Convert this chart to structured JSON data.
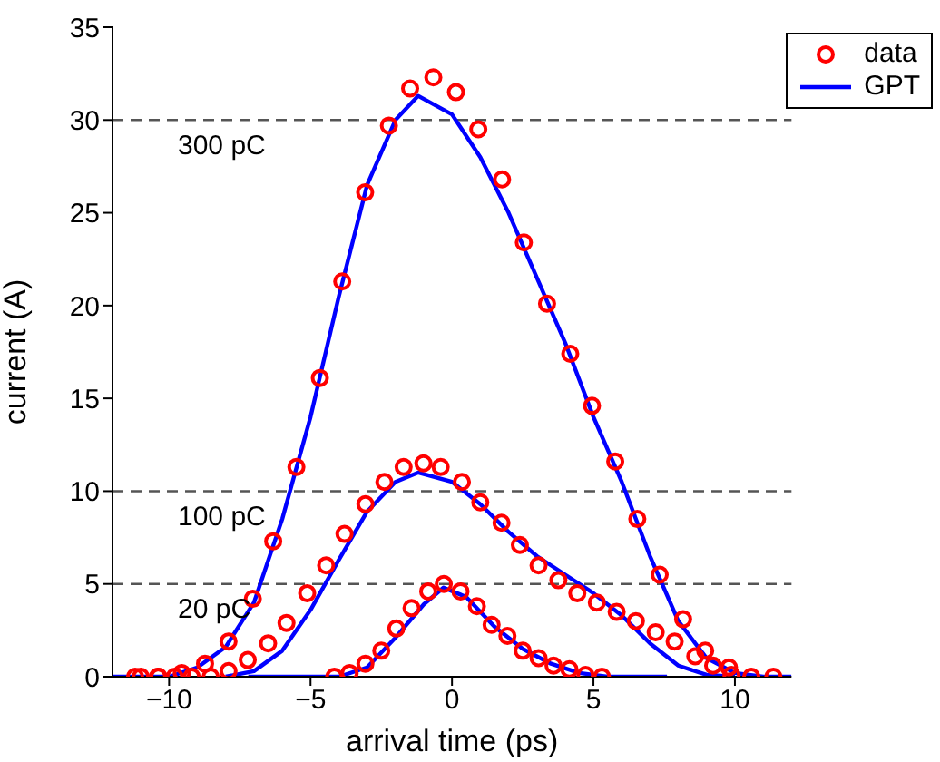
{
  "chart_data": {
    "type": "scatter",
    "xlabel": "arrival time (ps)",
    "ylabel": "current (A)",
    "xlim": [
      -12,
      12
    ],
    "xticks": [
      {
        "value": -10,
        "label": "−10"
      },
      {
        "value": -5,
        "label": "−5"
      },
      0,
      5,
      10
    ],
    "ylim": [
      0,
      35
    ],
    "yticks": [
      0,
      5,
      10,
      15,
      20,
      25,
      30,
      35
    ],
    "grid": false,
    "legend": "top right",
    "ref_lines": [
      {
        "axis": "y",
        "value": 30,
        "label": "300 pC",
        "color": "#555555",
        "line_style": "dashed"
      },
      {
        "axis": "y",
        "value": 10,
        "label": "100 pC",
        "color": "#555555",
        "line_style": "dashed"
      },
      {
        "axis": "y",
        "value": 5,
        "label": "20 pC",
        "color": "#555555",
        "line_style": "dashed"
      }
    ],
    "series": [
      {
        "name": "data",
        "marker": "circle",
        "color": "#ff0000",
        "x": [
          -11.2,
          -10.37,
          -9.55,
          -8.73,
          -7.9,
          -7.04,
          -6.32,
          -5.5,
          -4.67,
          -3.88,
          -3.07,
          -2.23,
          -1.48,
          -0.66,
          0.14,
          0.93,
          1.77,
          2.54,
          3.36,
          4.18,
          4.95,
          5.77,
          6.55,
          7.34,
          8.17,
          8.95,
          9.79,
          10.58,
          11.36
        ],
        "values": [
          0,
          0,
          0.2,
          0.7,
          1.9,
          4.2,
          7.3,
          11.3,
          16.1,
          21.3,
          26.1,
          29.7,
          31.7,
          32.3,
          31.5,
          29.5,
          26.8,
          23.4,
          20.1,
          17.4,
          14.6,
          11.6,
          8.5,
          5.5,
          3.1,
          1.4,
          0.5,
          null,
          0
        ]
      },
      {
        "marker": "circle",
        "color": "#ff0000",
        "x": [
          -11.0,
          -10.4,
          -9.8,
          -9.2,
          -8.53,
          -7.9,
          -7.22,
          -6.5,
          -5.85,
          -5.12,
          -4.45,
          -3.8,
          -3.06,
          -2.39,
          -1.71,
          -1.01,
          -0.4,
          0.35,
          1.0,
          1.75,
          2.4,
          3.06,
          3.76,
          4.43,
          5.12,
          5.82,
          6.5,
          7.2,
          7.87,
          8.6,
          9.23,
          9.88,
          10.58
        ],
        "values": [
          0,
          0,
          0,
          0,
          0,
          0.3,
          0.9,
          1.8,
          2.9,
          4.5,
          6,
          7.7,
          9.3,
          10.5,
          11.3,
          11.5,
          11.3,
          10.5,
          9.4,
          8.3,
          7.1,
          6,
          5.2,
          4.5,
          4,
          3.5,
          3,
          2.4,
          1.9,
          1.1,
          0.6,
          0.1,
          0
        ]
      },
      {
        "marker": "circle",
        "color": "#ff0000",
        "x": [
          -4.16,
          -3.62,
          -3.06,
          -2.5,
          -1.97,
          -1.43,
          -0.84,
          -0.29,
          0.3,
          0.88,
          1.4,
          1.96,
          2.5,
          3.06,
          3.59,
          4.15,
          4.72,
          5.3
        ],
        "values": [
          0,
          0.2,
          0.7,
          1.4,
          2.6,
          3.7,
          4.6,
          5,
          4.6,
          3.8,
          2.8,
          2.2,
          1.4,
          1,
          0.6,
          0.4,
          0.1,
          0
        ]
      },
      {
        "name": "GPT",
        "type": "line",
        "marker": "none",
        "line_style": "solid",
        "color": "#0000ff",
        "x": [
          -12,
          -10,
          -9,
          -8,
          -7,
          -6,
          -5,
          -4,
          -3,
          -2,
          -1.2,
          0,
          1,
          2,
          3,
          4,
          5,
          6,
          7,
          8,
          9,
          10,
          11,
          12
        ],
        "values": [
          0,
          0,
          0.5,
          1.6,
          4,
          8.5,
          14,
          20.5,
          26.5,
          30,
          31.3,
          30.3,
          28,
          25,
          21.5,
          18,
          14,
          10.5,
          6.5,
          3,
          1,
          0.2,
          0,
          0
        ]
      },
      {
        "type": "line",
        "marker": "none",
        "line_style": "solid",
        "color": "#0000ff",
        "x": [
          -8,
          -7,
          -6,
          -5,
          -4,
          -3,
          -2,
          -1.2,
          0,
          1,
          2,
          3,
          4,
          5,
          6,
          7,
          8,
          9,
          10
        ],
        "values": [
          0,
          0.3,
          1.4,
          3.6,
          6.3,
          8.9,
          10.5,
          11,
          10.5,
          9.3,
          7.8,
          6.5,
          5.5,
          4.5,
          3.3,
          1.8,
          0.6,
          0.1,
          0
        ]
      },
      {
        "type": "line",
        "marker": "none",
        "line_style": "solid",
        "color": "#0000ff",
        "x": [
          -7.2,
          -4,
          -3,
          -2,
          -1,
          -0.3,
          0.5,
          1.5,
          2.5,
          3.5,
          4.5,
          5.5,
          7.6
        ],
        "values": [
          0,
          0,
          0.5,
          2.1,
          3.9,
          4.8,
          4.3,
          2.7,
          1.5,
          0.7,
          0.2,
          0,
          0
        ]
      }
    ]
  }
}
